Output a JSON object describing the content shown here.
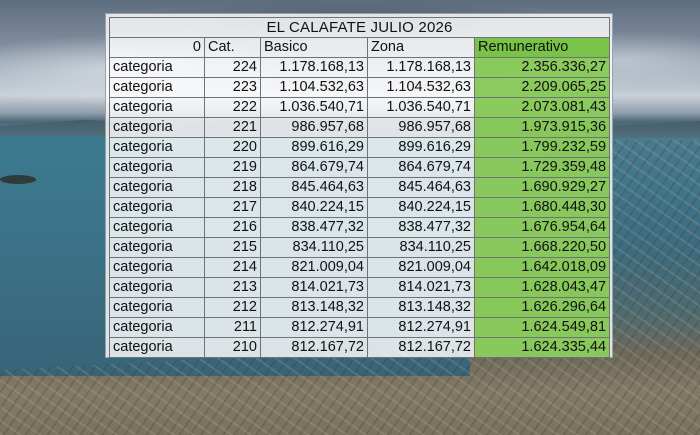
{
  "title": "EL CALAFATE   JULIO 2026",
  "headers": [
    "0",
    "Cat.",
    "Basico",
    "Zona",
    "Remunerativo"
  ],
  "rows": [
    {
      "categoria": "categoria",
      "cat": "224",
      "basico": "1.178.168,13",
      "zona": "1.178.168,13",
      "remunerativo": "2.356.336,27"
    },
    {
      "categoria": "categoria",
      "cat": "223",
      "basico": "1.104.532,63",
      "zona": "1.104.532,63",
      "remunerativo": "2.209.065,25"
    },
    {
      "categoria": "categoria",
      "cat": "222",
      "basico": "1.036.540,71",
      "zona": "1.036.540,71",
      "remunerativo": "2.073.081,43"
    },
    {
      "categoria": "categoria",
      "cat": "221",
      "basico": "986.957,68",
      "zona": "986.957,68",
      "remunerativo": "1.973.915,36"
    },
    {
      "categoria": "categoria",
      "cat": "220",
      "basico": "899.616,29",
      "zona": "899.616,29",
      "remunerativo": "1.799.232,59"
    },
    {
      "categoria": "categoria",
      "cat": "219",
      "basico": "864.679,74",
      "zona": "864.679,74",
      "remunerativo": "1.729.359,48"
    },
    {
      "categoria": "categoria",
      "cat": "218",
      "basico": "845.464,63",
      "zona": "845.464,63",
      "remunerativo": "1.690.929,27"
    },
    {
      "categoria": "categoria",
      "cat": "217",
      "basico": "840.224,15",
      "zona": "840.224,15",
      "remunerativo": "1.680.448,30"
    },
    {
      "categoria": "categoria",
      "cat": "216",
      "basico": "838.477,32",
      "zona": "838.477,32",
      "remunerativo": "1.676.954,64"
    },
    {
      "categoria": "categoria",
      "cat": "215",
      "basico": "834.110,25",
      "zona": "834.110,25",
      "remunerativo": "1.668.220,50"
    },
    {
      "categoria": "categoria",
      "cat": "214",
      "basico": "821.009,04",
      "zona": "821.009,04",
      "remunerativo": "1.642.018,09"
    },
    {
      "categoria": "categoria",
      "cat": "213",
      "basico": "814.021,73",
      "zona": "814.021,73",
      "remunerativo": "1.628.043,47"
    },
    {
      "categoria": "categoria",
      "cat": "212",
      "basico": "813.148,32",
      "zona": "813.148,32",
      "remunerativo": "1.626.296,64"
    },
    {
      "categoria": "categoria",
      "cat": "211",
      "basico": "812.274,91",
      "zona": "812.274,91",
      "remunerativo": "1.624.549,81"
    },
    {
      "categoria": "categoria",
      "cat": "210",
      "basico": "812.167,72",
      "zona": "812.167,72",
      "remunerativo": "1.624.335,44"
    }
  ],
  "colors": {
    "remunerativo_fill": "#7cc448",
    "grid_line": "#6f7276"
  }
}
